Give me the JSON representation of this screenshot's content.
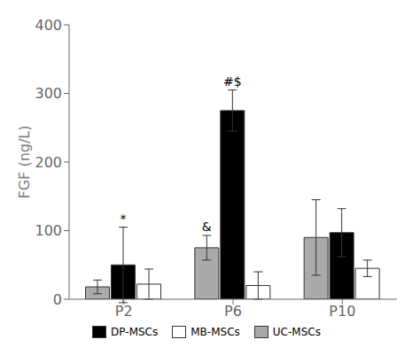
{
  "chart_data": {
    "type": "bar",
    "categories": [
      "P2",
      "P6",
      "P10"
    ],
    "series": [
      {
        "name": "UC-MSCs",
        "color": "#aaaaaa",
        "values": [
          18,
          75,
          90
        ],
        "errors": [
          10,
          18,
          55
        ]
      },
      {
        "name": "DP-MSCs",
        "color": "#000000",
        "values": [
          50,
          275,
          97
        ],
        "errors": [
          55,
          30,
          35
        ]
      },
      {
        "name": "MB-MSCs",
        "color": "#ffffff",
        "values": [
          22,
          20,
          45
        ],
        "errors": [
          22,
          20,
          12
        ]
      }
    ],
    "ylabel": "FGF (ng/L)",
    "ylim": [
      0,
      400
    ],
    "yticks": [
      0,
      100,
      200,
      300,
      400
    ],
    "annotations": [
      {
        "text": "*",
        "category": "P2",
        "series": "DP-MSCs"
      },
      {
        "text": "&",
        "category": "P6",
        "series": "UC-MSCs"
      },
      {
        "text": "#$",
        "category": "P6",
        "series": "DP-MSCs"
      }
    ],
    "grid": false,
    "legend": "bottom"
  }
}
